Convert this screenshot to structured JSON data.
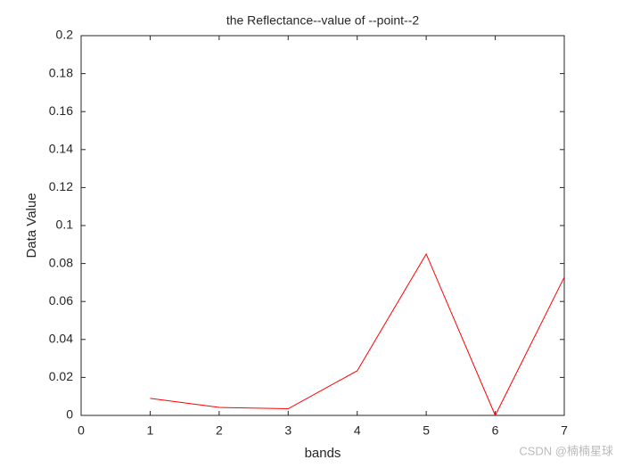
{
  "chart_data": {
    "type": "line",
    "title": "the Reflectance--value of --point--2",
    "x_label": "bands",
    "y_label": "Data Value",
    "watermark": "CSDN @楠楠星球",
    "x": [
      1,
      2,
      3,
      4,
      5,
      6,
      7
    ],
    "series": [
      {
        "name": "point-2",
        "color": "#ff0000",
        "values": [
          0.009,
          0.0042,
          0.0035,
          0.0235,
          0.085,
          0.0,
          0.0728
        ]
      }
    ],
    "xlim": [
      0,
      7
    ],
    "xticks": [
      0,
      1,
      2,
      3,
      4,
      5,
      6,
      7
    ],
    "ylim": [
      0,
      0.2
    ],
    "yticks": [
      0,
      0.02,
      0.04,
      0.06,
      0.08,
      0.1,
      0.12,
      0.14,
      0.16,
      0.18,
      0.2
    ],
    "grid": false,
    "box": true
  }
}
